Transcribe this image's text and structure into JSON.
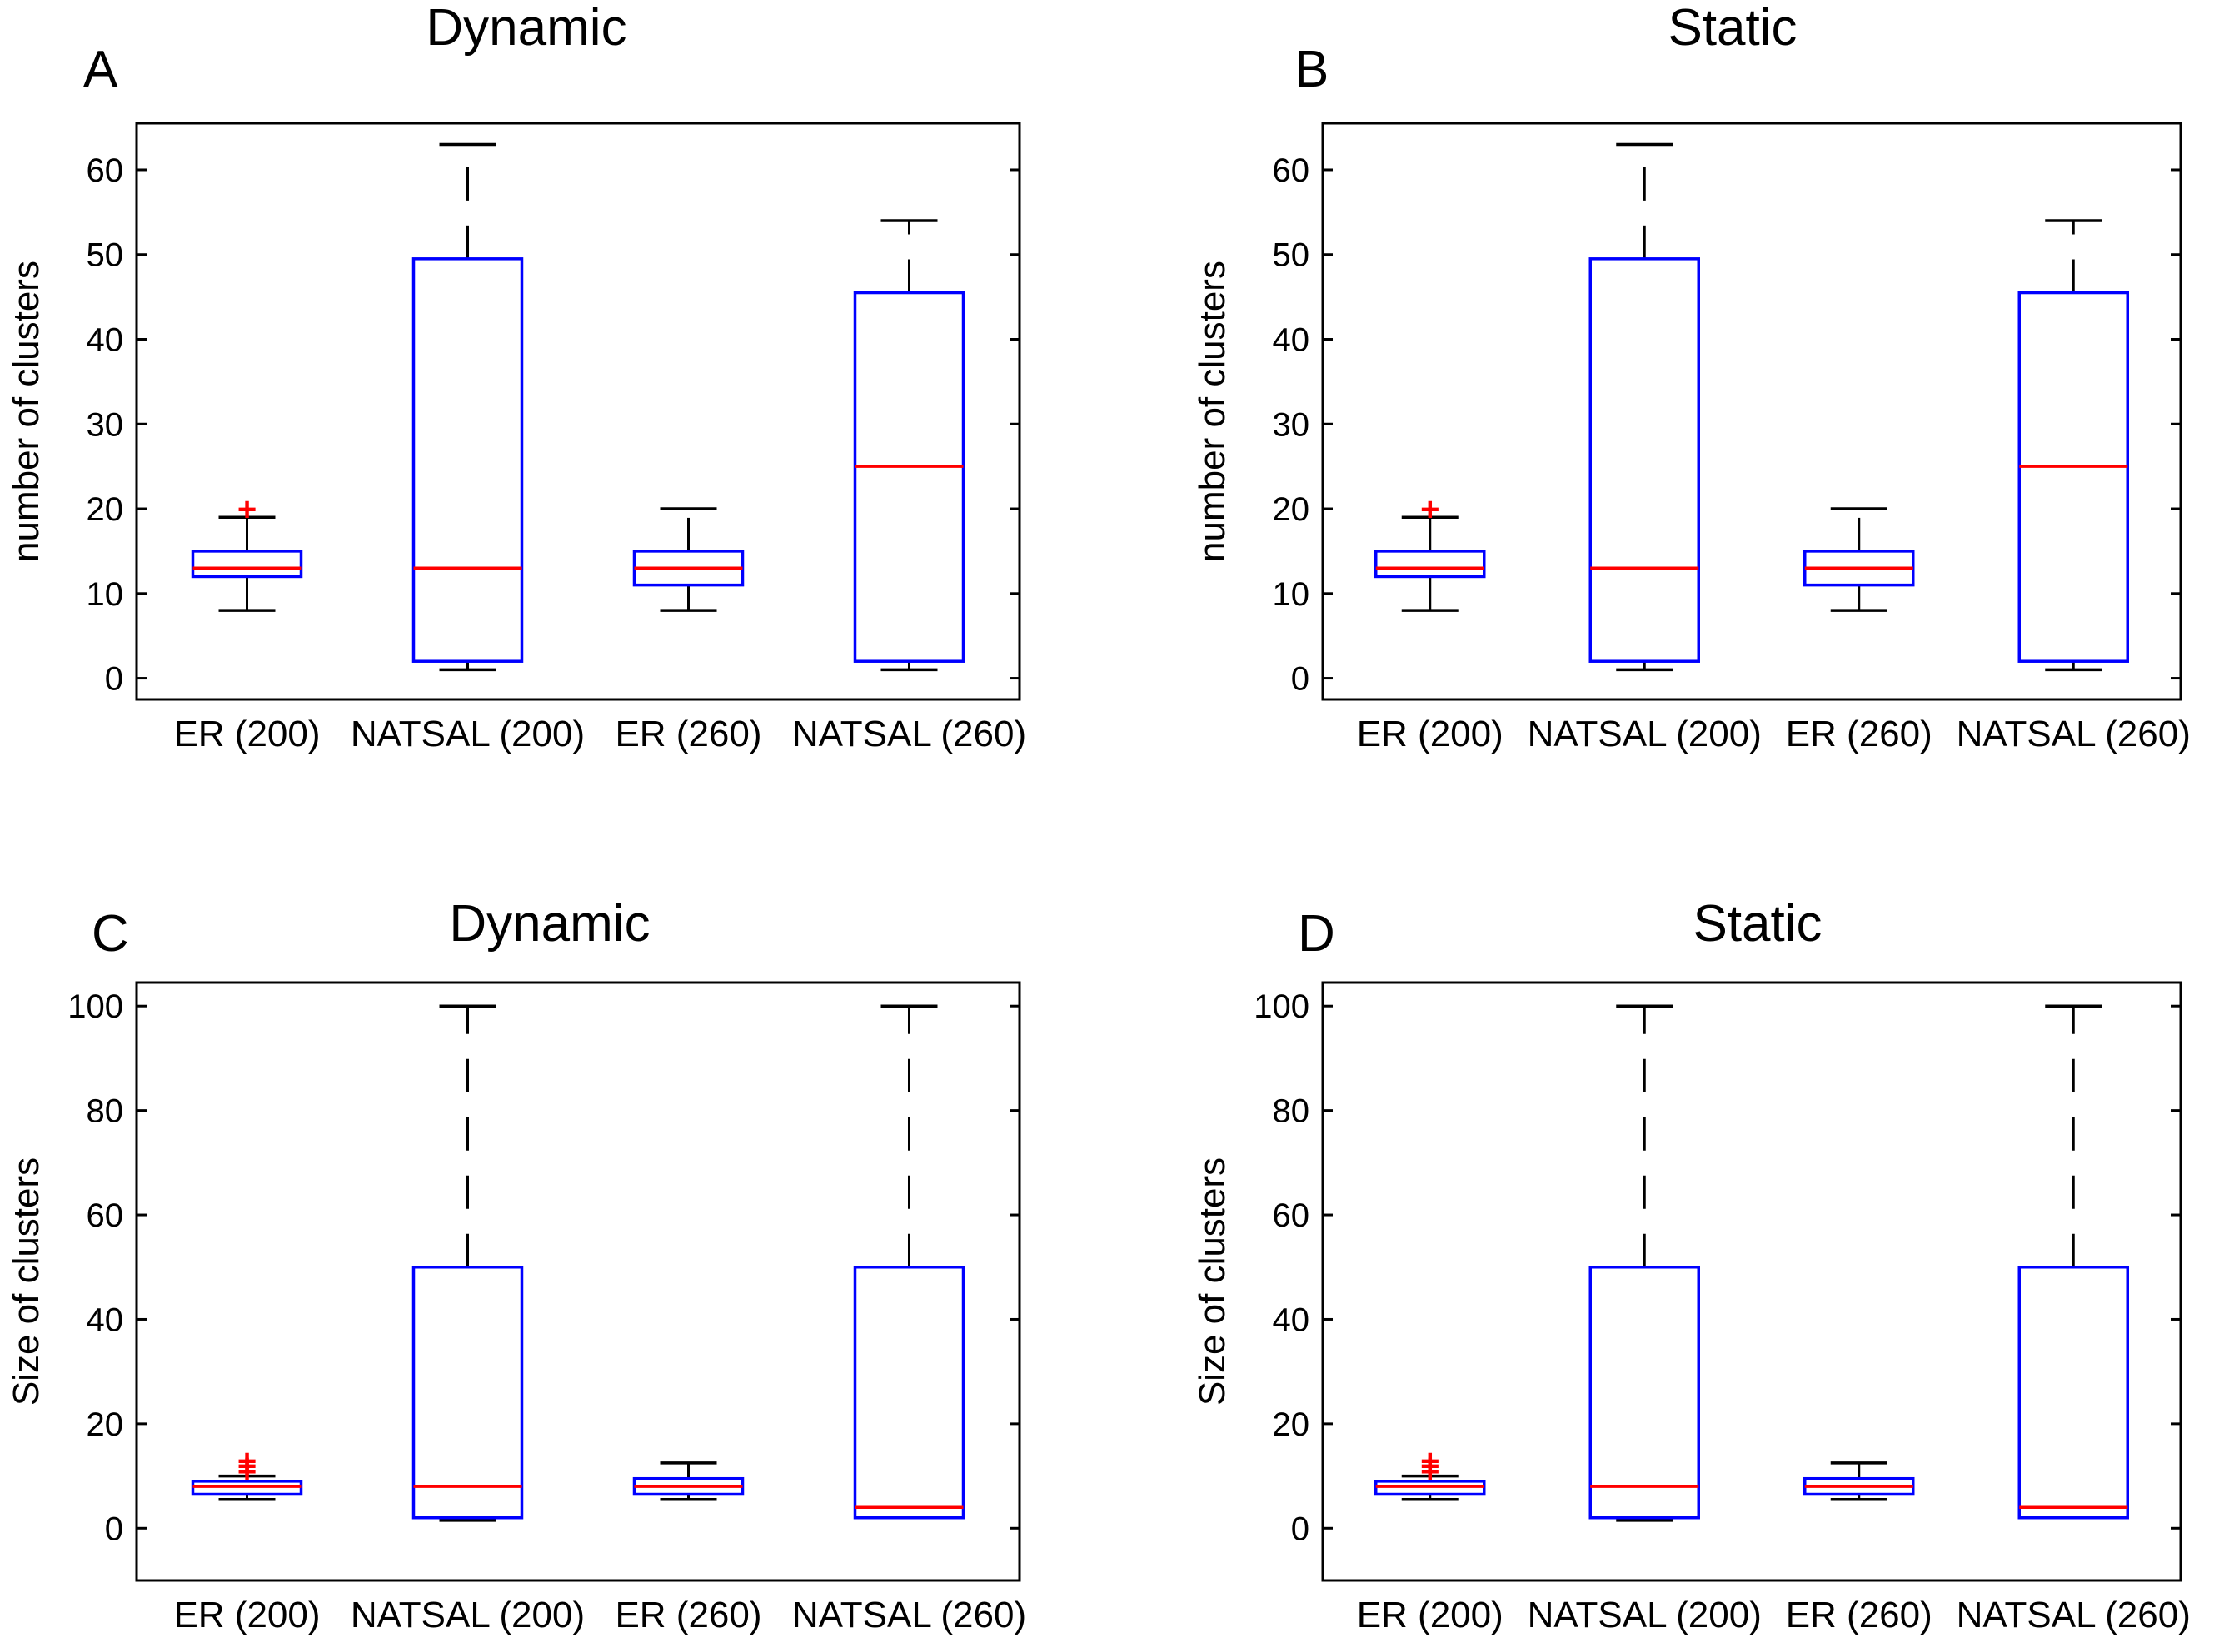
{
  "chart_data": [
    {
      "panel": "A",
      "title": "Dynamic",
      "type": "box",
      "ylabel": "number of clusters",
      "ylim": [
        -2.5,
        65.5
      ],
      "yticks": [
        0,
        10,
        20,
        30,
        40,
        50,
        60
      ],
      "categories": [
        "ER (200)",
        "NATSAL (200)",
        "ER (260)",
        "NATSAL (260)"
      ],
      "boxes": [
        {
          "min": 8,
          "q1": 12,
          "median": 13,
          "q3": 15,
          "max": 19,
          "outliers": [
            20
          ]
        },
        {
          "min": 1,
          "q1": 2,
          "median": 13,
          "q3": 49.5,
          "max": 63,
          "outliers": []
        },
        {
          "min": 8,
          "q1": 11,
          "median": 13,
          "q3": 15,
          "max": 20,
          "outliers": []
        },
        {
          "min": 1,
          "q1": 2,
          "median": 25,
          "q3": 45.5,
          "max": 54,
          "outliers": []
        }
      ]
    },
    {
      "panel": "B",
      "title": "Static",
      "type": "box",
      "ylabel": "number of clusters",
      "ylim": [
        -2.5,
        65.5
      ],
      "yticks": [
        0,
        10,
        20,
        30,
        40,
        50,
        60
      ],
      "categories": [
        "ER (200)",
        "NATSAL (200)",
        "ER (260)",
        "NATSAL (260)"
      ],
      "boxes": [
        {
          "min": 8,
          "q1": 12,
          "median": 13,
          "q3": 15,
          "max": 19,
          "outliers": [
            20
          ]
        },
        {
          "min": 1,
          "q1": 2,
          "median": 13,
          "q3": 49.5,
          "max": 63,
          "outliers": []
        },
        {
          "min": 8,
          "q1": 11,
          "median": 13,
          "q3": 15,
          "max": 20,
          "outliers": []
        },
        {
          "min": 1,
          "q1": 2,
          "median": 25,
          "q3": 45.5,
          "max": 54,
          "outliers": []
        }
      ]
    },
    {
      "panel": "C",
      "title": "Dynamic",
      "type": "box",
      "ylabel": "Size of clusters",
      "ylim": [
        -10,
        104.5
      ],
      "yticks": [
        0,
        20,
        40,
        60,
        80,
        100
      ],
      "categories": [
        "ER (200)",
        "NATSAL (200)",
        "ER (260)",
        "NATSAL (260)"
      ],
      "boxes": [
        {
          "min": 5.5,
          "q1": 6.5,
          "median": 8,
          "q3": 9,
          "max": 10,
          "outliers": [
            11,
            12,
            13
          ]
        },
        {
          "min": 1.5,
          "q1": 2,
          "median": 8,
          "q3": 50,
          "max": 100,
          "outliers": []
        },
        {
          "min": 5.5,
          "q1": 6.5,
          "median": 8,
          "q3": 9.5,
          "max": 12.5,
          "outliers": []
        },
        {
          "min": 2,
          "q1": 2,
          "median": 4,
          "q3": 50,
          "max": 100,
          "outliers": []
        }
      ]
    },
    {
      "panel": "D",
      "title": "Static",
      "type": "box",
      "ylabel": "Size of clusters",
      "ylim": [
        -10,
        104.5
      ],
      "yticks": [
        0,
        20,
        40,
        60,
        80,
        100
      ],
      "categories": [
        "ER (200)",
        "NATSAL (200)",
        "ER (260)",
        "NATSAL (260)"
      ],
      "boxes": [
        {
          "min": 5.5,
          "q1": 6.5,
          "median": 8,
          "q3": 9,
          "max": 10,
          "outliers": [
            11,
            12,
            13
          ]
        },
        {
          "min": 1.5,
          "q1": 2,
          "median": 8,
          "q3": 50,
          "max": 100,
          "outliers": []
        },
        {
          "min": 5.5,
          "q1": 6.5,
          "median": 8,
          "q3": 9.5,
          "max": 12.5,
          "outliers": []
        },
        {
          "min": 2,
          "q1": 2,
          "median": 4,
          "q3": 50,
          "max": 100,
          "outliers": []
        }
      ]
    }
  ],
  "colors": {
    "box": "#0000ff",
    "median": "#ff0000",
    "whisker": "#000000",
    "outlier": "#ff0000",
    "frame": "#000000"
  },
  "outlier_marker": "+"
}
